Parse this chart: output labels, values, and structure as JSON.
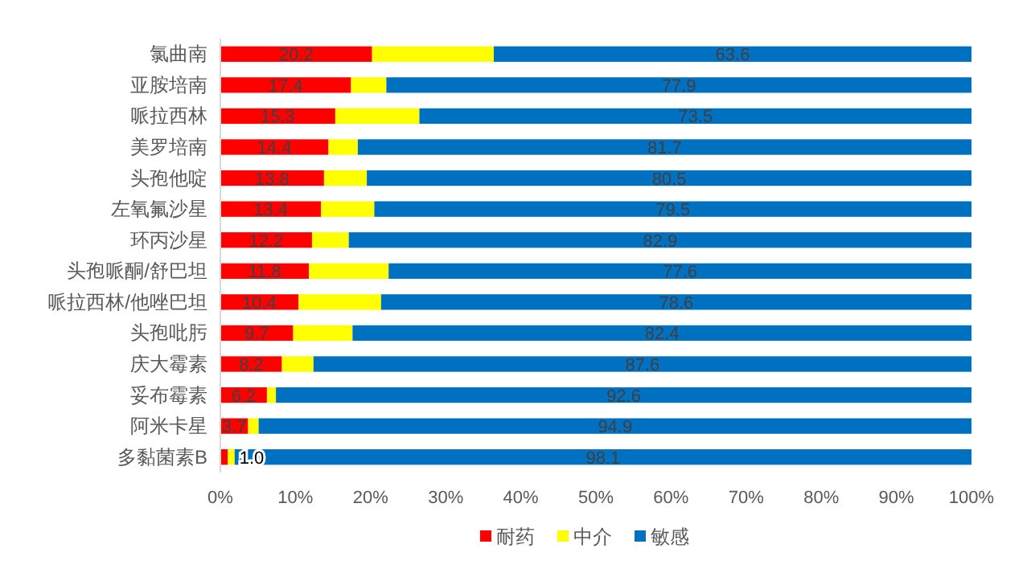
{
  "chart_data": {
    "type": "bar",
    "orientation": "horizontal",
    "stacked": true,
    "categories": [
      "氯曲南",
      "亚胺培南",
      "哌拉西林",
      "美罗培南",
      "头孢他啶",
      "左氧氟沙星",
      "环丙沙星",
      "头孢哌酮/舒巴坦",
      "哌拉西林/他唑巴坦",
      "头孢吡肟",
      "庆大霉素",
      "妥布霉素",
      "阿米卡星",
      "多黏菌素B"
    ],
    "series": [
      {
        "name": "耐药",
        "color": "#ff0000",
        "values": [
          20.2,
          17.4,
          15.3,
          14.4,
          13.8,
          13.4,
          12.2,
          11.8,
          10.4,
          9.7,
          8.2,
          6.2,
          3.7,
          1.0
        ],
        "value_labels": [
          "20.2",
          "17.4",
          "15.3",
          "14.4",
          "13.8",
          "13.4",
          "12.2",
          "11.8",
          "10.4",
          "9.7",
          "8.2",
          "6.2",
          "3.7",
          "1.0"
        ]
      },
      {
        "name": "中介",
        "color": "#ffff00",
        "values": [
          16.2,
          4.7,
          11.2,
          3.9,
          5.7,
          7.1,
          4.9,
          10.6,
          11.0,
          7.9,
          4.2,
          1.2,
          1.4,
          0.9
        ]
      },
      {
        "name": "敏感",
        "color": "#0070c0",
        "values": [
          63.6,
          77.9,
          73.5,
          81.7,
          80.5,
          79.5,
          82.9,
          77.6,
          78.6,
          82.4,
          87.6,
          92.6,
          94.9,
          98.1
        ],
        "value_labels": [
          "63.6",
          "77.9",
          "73.5",
          "81.7",
          "80.5",
          "79.5",
          "82.9",
          "77.6",
          "78.6",
          "82.4",
          "87.6",
          "92.6",
          "94.9",
          "98.1"
        ]
      }
    ],
    "xlim": [
      0,
      100
    ],
    "xticks": [
      {
        "value": 0,
        "label": "0%"
      },
      {
        "value": 10,
        "label": "10%"
      },
      {
        "value": 20,
        "label": "20%"
      },
      {
        "value": 30,
        "label": "30%"
      },
      {
        "value": 40,
        "label": "40%"
      },
      {
        "value": 50,
        "label": "50%"
      },
      {
        "value": 60,
        "label": "60%"
      },
      {
        "value": 70,
        "label": "70%"
      },
      {
        "value": 80,
        "label": "80%"
      },
      {
        "value": 90,
        "label": "90%"
      },
      {
        "value": 100,
        "label": "100%"
      }
    ],
    "legend": "bottom",
    "grid": false
  }
}
